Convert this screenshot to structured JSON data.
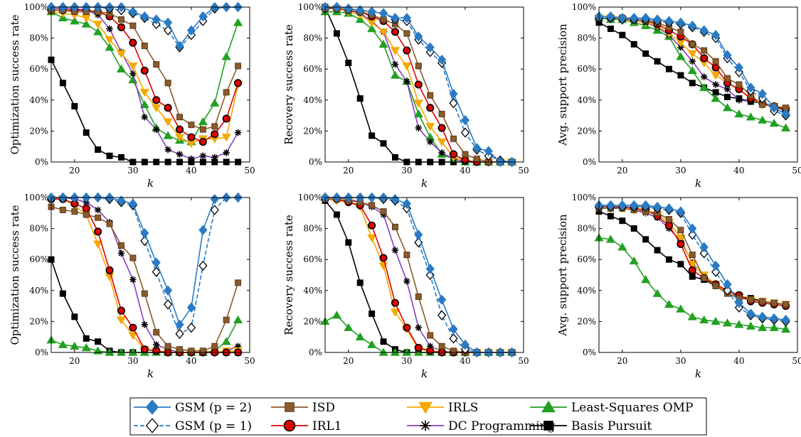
{
  "series": [
    {
      "key": "gsm2",
      "name": "GSM (p = 2)",
      "color": "#2A7BC4",
      "marker": "diamond",
      "filled": true,
      "dash": false
    },
    {
      "key": "gsm1",
      "name": "GSM (p = 1)",
      "color": "#2A7BC4",
      "marker": "diamond",
      "filled": false,
      "dash": true
    },
    {
      "key": "isd",
      "name": "ISD",
      "color": "#8B5A2B",
      "marker": "square",
      "filled": true,
      "dash": false
    },
    {
      "key": "irl1",
      "name": "IRL1",
      "color": "#E00000",
      "marker": "circle",
      "filled": true,
      "dash": false,
      "markerFill": "#E00000",
      "markerStroke": "#000000"
    },
    {
      "key": "irls",
      "name": "IRLS",
      "color": "#F5A800",
      "marker": "triangle-down",
      "filled": true,
      "dash": false
    },
    {
      "key": "dc",
      "name": "DC Programming",
      "color": "#8A3FC0",
      "marker": "asterisk",
      "filled": false,
      "dash": false,
      "markerColor": "#000000"
    },
    {
      "key": "lsomp",
      "name": "Least-Squares OMP",
      "color": "#22A022",
      "marker": "triangle-up",
      "filled": true,
      "dash": false
    },
    {
      "key": "bp",
      "name": "Basis Pursuit",
      "color": "#000000",
      "marker": "square",
      "filled": true,
      "dash": false
    }
  ],
  "legend": {
    "rows": [
      [
        "gsm2",
        "isd",
        "irls",
        "lsomp"
      ],
      [
        "gsm1",
        "irl1",
        "dc",
        "bp"
      ]
    ]
  },
  "chart_data": [
    {
      "type": "line",
      "xlabel": "k",
      "ylabel": "Optimization success rate",
      "ylim": [
        0,
        100
      ],
      "xlim": [
        16,
        50
      ],
      "xticks": [
        20,
        30,
        40,
        50
      ],
      "yticks": [
        "0%",
        "20%",
        "40%",
        "60%",
        "80%",
        "100%"
      ],
      "x": [
        16,
        18,
        20,
        22,
        24,
        26,
        28,
        30,
        32,
        34,
        36,
        38,
        40,
        42,
        44,
        46,
        48
      ],
      "series": {
        "gsm2": [
          100,
          100,
          100,
          100,
          100,
          100,
          100,
          97,
          94,
          92,
          90,
          75,
          85,
          94,
          100,
          100,
          100
        ],
        "gsm1": [
          100,
          100,
          100,
          100,
          100,
          99,
          98,
          96,
          93,
          89,
          85,
          74,
          82,
          91,
          99,
          100,
          100
        ],
        "isd": [
          98,
          98,
          97,
          97,
          97,
          96,
          92,
          88,
          75,
          63,
          51,
          29,
          24,
          21,
          23,
          45,
          62
        ],
        "irl1": [
          98,
          98,
          98,
          98,
          97,
          94,
          87,
          77,
          59,
          40,
          35,
          21,
          16,
          13,
          18,
          28,
          51
        ],
        "irls": [
          97,
          96,
          95,
          93,
          89,
          79,
          70,
          62,
          45,
          35,
          26,
          16,
          12,
          15,
          15,
          16,
          50
        ],
        "dc": [
          99,
          99,
          99,
          98,
          95,
          86,
          71,
          57,
          29,
          21,
          8,
          5,
          2,
          4,
          3,
          6,
          19
        ],
        "lsomp": [
          97,
          93,
          91,
          89,
          84,
          74,
          60,
          53,
          37,
          22,
          17,
          14,
          13,
          26,
          38,
          68,
          90
        ],
        "bp": [
          66,
          51,
          36,
          19,
          8,
          4,
          3,
          0,
          0,
          0,
          0,
          0,
          0,
          0,
          0,
          0,
          0
        ]
      }
    },
    {
      "type": "line",
      "xlabel": "k",
      "ylabel": "Recovery success rate",
      "ylim": [
        0,
        100
      ],
      "xlim": [
        16,
        50
      ],
      "xticks": [
        20,
        30,
        40,
        50
      ],
      "yticks": [
        "0%",
        "20%",
        "40%",
        "60%",
        "80%",
        "100%"
      ],
      "x": [
        16,
        18,
        20,
        22,
        24,
        26,
        28,
        30,
        32,
        34,
        36,
        38,
        40,
        42,
        44,
        46,
        48
      ],
      "series": {
        "gsm2": [
          100,
          100,
          99,
          98,
          97,
          96,
          93,
          93,
          81,
          74,
          66,
          44,
          27,
          9,
          7,
          0,
          0
        ],
        "gsm1": [
          100,
          100,
          99,
          98,
          97,
          96,
          92,
          91,
          79,
          71,
          64,
          38,
          19,
          8,
          4,
          1,
          0
        ],
        "isd": [
          99,
          99,
          98,
          97,
          95,
          92,
          89,
          83,
          62,
          43,
          31,
          15,
          5,
          2,
          0,
          0,
          0
        ],
        "irl1": [
          99,
          99,
          98,
          97,
          94,
          91,
          84,
          72,
          50,
          35,
          22,
          5,
          1,
          0,
          0,
          0,
          0
        ],
        "irls": [
          99,
          99,
          97,
          95,
          90,
          84,
          72,
          62,
          38,
          23,
          13,
          3,
          1,
          0,
          0,
          0,
          0
        ],
        "dc": [
          100,
          99,
          98,
          96,
          91,
          84,
          63,
          52,
          22,
          13,
          6,
          2,
          0,
          0,
          0,
          0,
          0
        ],
        "lsomp": [
          97,
          97,
          96,
          92,
          86,
          76,
          56,
          52,
          31,
          16,
          5,
          2,
          0,
          0,
          0,
          0,
          0
        ],
        "bp": [
          100,
          83,
          64,
          41,
          17,
          12,
          3,
          0,
          0,
          0,
          0,
          0,
          0,
          0,
          0,
          0,
          0
        ]
      }
    },
    {
      "type": "line",
      "xlabel": "k",
      "ylabel": "Avg. support precision",
      "ylim": [
        0,
        100
      ],
      "xlim": [
        16,
        50
      ],
      "xticks": [
        20,
        30,
        40,
        50
      ],
      "yticks": [
        "0%",
        "20%",
        "40%",
        "60%",
        "80%",
        "100%"
      ],
      "x": [
        16,
        18,
        20,
        22,
        24,
        26,
        28,
        30,
        32,
        34,
        36,
        38,
        40,
        42,
        44,
        46,
        48
      ],
      "series": {
        "gsm2": [
          94,
          94,
          93,
          93,
          93,
          92,
          91,
          90,
          88,
          85,
          82,
          69,
          61,
          48,
          44,
          35,
          31
        ],
        "gsm1": [
          93,
          93,
          92,
          92,
          92,
          91,
          90,
          89,
          87,
          84,
          80,
          67,
          58,
          46,
          41,
          33,
          30
        ],
        "isd": [
          93,
          93,
          93,
          92,
          91,
          90,
          87,
          84,
          76,
          72,
          65,
          54,
          50,
          43,
          37,
          36,
          35
        ],
        "irl1": [
          93,
          93,
          93,
          92,
          91,
          89,
          85,
          81,
          76,
          67,
          61,
          51,
          47,
          41,
          38,
          36,
          34
        ],
        "irls": [
          93,
          93,
          92,
          91,
          90,
          88,
          83,
          77,
          70,
          64,
          56,
          51,
          47,
          41,
          37,
          36,
          34
        ],
        "dc": [
          93,
          93,
          92,
          91,
          90,
          87,
          82,
          74,
          65,
          55,
          50,
          47,
          40,
          39,
          39,
          34,
          32
        ],
        "lsomp": [
          93,
          92,
          92,
          90,
          88,
          85,
          81,
          68,
          59,
          48,
          41,
          35,
          31,
          29,
          27,
          25,
          22
        ],
        "bp": [
          90,
          86,
          82,
          76,
          70,
          65,
          60,
          56,
          51,
          48,
          45,
          42,
          41,
          39,
          38,
          35,
          34
        ]
      }
    },
    {
      "type": "line",
      "xlabel": "k",
      "ylabel": "Optimization success rate",
      "ylim": [
        0,
        100
      ],
      "xlim": [
        16,
        50
      ],
      "xticks": [
        20,
        30,
        40,
        50
      ],
      "yticks": [
        "0%",
        "20%",
        "40%",
        "60%",
        "80%",
        "100%"
      ],
      "x": [
        16,
        18,
        20,
        22,
        24,
        26,
        28,
        30,
        32,
        34,
        36,
        38,
        40,
        42,
        44,
        46,
        48
      ],
      "series": {
        "gsm2": [
          100,
          100,
          100,
          100,
          100,
          100,
          98,
          96,
          77,
          58,
          40,
          18,
          29,
          79,
          99,
          100,
          100
        ],
        "gsm1": [
          100,
          100,
          100,
          100,
          100,
          99,
          97,
          95,
          72,
          52,
          31,
          12,
          16,
          56,
          92,
          100,
          100
        ],
        "isd": [
          94,
          92,
          91,
          89,
          87,
          83,
          69,
          61,
          38,
          13,
          4,
          2,
          1,
          1,
          4,
          21,
          45
        ],
        "irl1": [
          99,
          99,
          96,
          93,
          78,
          53,
          27,
          16,
          2,
          1,
          0,
          0,
          0,
          0,
          0,
          0,
          0
        ],
        "irls": [
          99,
          99,
          95,
          89,
          70,
          49,
          21,
          11,
          2,
          1,
          0,
          0,
          0,
          0,
          0,
          1,
          1
        ],
        "dc": [
          100,
          100,
          99,
          97,
          92,
          84,
          64,
          47,
          18,
          5,
          2,
          0,
          0,
          0,
          0,
          1,
          4
        ],
        "lsomp": [
          8,
          5,
          4,
          3,
          1,
          0,
          0,
          0,
          0,
          0,
          0,
          0,
          0,
          0,
          1,
          7,
          21
        ],
        "bp": [
          60,
          38,
          23,
          9,
          7,
          1,
          0,
          0,
          0,
          0,
          0,
          0,
          0,
          0,
          0,
          0,
          0
        ]
      }
    },
    {
      "type": "line",
      "xlabel": "k",
      "ylabel": "Recovery success rate",
      "ylim": [
        0,
        100
      ],
      "xlim": [
        16,
        50
      ],
      "xticks": [
        20,
        30,
        40,
        50
      ],
      "yticks": [
        "0%",
        "20%",
        "40%",
        "60%",
        "80%",
        "100%"
      ],
      "x": [
        16,
        18,
        20,
        22,
        24,
        26,
        28,
        30,
        32,
        34,
        36,
        38,
        40,
        42,
        44,
        46,
        48
      ],
      "series": {
        "gsm2": [
          100,
          100,
          100,
          100,
          100,
          100,
          99,
          96,
          76,
          54,
          34,
          15,
          5,
          0,
          0,
          0,
          0
        ],
        "gsm1": [
          100,
          100,
          100,
          100,
          100,
          99,
          98,
          93,
          71,
          50,
          24,
          9,
          2,
          0,
          0,
          0,
          0
        ],
        "isd": [
          99,
          99,
          98,
          97,
          95,
          91,
          81,
          63,
          36,
          11,
          4,
          1,
          0,
          0,
          0,
          0,
          0
        ],
        "irl1": [
          99,
          99,
          97,
          95,
          82,
          61,
          32,
          16,
          3,
          1,
          0,
          0,
          0,
          0,
          0,
          0,
          0
        ],
        "irls": [
          99,
          98,
          97,
          94,
          74,
          56,
          26,
          15,
          2,
          1,
          0,
          0,
          0,
          0,
          0,
          0,
          0
        ],
        "dc": [
          100,
          100,
          99,
          97,
          94,
          89,
          66,
          46,
          16,
          4,
          1,
          0,
          0,
          0,
          0,
          0,
          0
        ],
        "lsomp": [
          20,
          24,
          16,
          10,
          5,
          0,
          0,
          0,
          0,
          0,
          0,
          0,
          0,
          0,
          0,
          0,
          0
        ],
        "bp": [
          98,
          89,
          71,
          45,
          25,
          7,
          2,
          0,
          0,
          0,
          0,
          0,
          0,
          0,
          0,
          0,
          0
        ]
      }
    },
    {
      "type": "line",
      "xlabel": "k",
      "ylabel": "Avg. support precision",
      "ylim": [
        0,
        100
      ],
      "xlim": [
        16,
        50
      ],
      "xticks": [
        20,
        30,
        40,
        50
      ],
      "yticks": [
        "0%",
        "20%",
        "40%",
        "60%",
        "80%",
        "100%"
      ],
      "x": [
        16,
        18,
        20,
        22,
        24,
        26,
        28,
        30,
        32,
        34,
        36,
        38,
        40,
        42,
        44,
        46,
        48
      ],
      "series": {
        "gsm2": [
          95,
          95,
          95,
          95,
          95,
          94,
          93,
          91,
          80,
          68,
          56,
          44,
          32,
          25,
          23,
          22,
          21
        ],
        "gsm1": [
          94,
          94,
          94,
          94,
          94,
          93,
          92,
          90,
          76,
          64,
          52,
          40,
          29,
          24,
          22,
          21,
          20
        ],
        "isd": [
          93,
          93,
          93,
          92,
          91,
          90,
          86,
          79,
          63,
          48,
          43,
          38,
          35,
          34,
          33,
          32,
          31
        ],
        "irl1": [
          94,
          94,
          94,
          93,
          92,
          88,
          82,
          70,
          53,
          48,
          44,
          40,
          37,
          33,
          32,
          31,
          30
        ],
        "irls": [
          93,
          93,
          93,
          92,
          91,
          89,
          84,
          74,
          57,
          50,
          44,
          39,
          36,
          34,
          33,
          32,
          31
        ],
        "dc": [
          94,
          94,
          93,
          92,
          90,
          87,
          80,
          72,
          58,
          49,
          43,
          40,
          36,
          34,
          33,
          32,
          31
        ],
        "lsomp": [
          74,
          73,
          68,
          59,
          47,
          38,
          31,
          28,
          23,
          21,
          20,
          19,
          18,
          17,
          16,
          16,
          15
        ],
        "bp": [
          91,
          88,
          85,
          80,
          73,
          66,
          60,
          57,
          49,
          47,
          43,
          39,
          36,
          35,
          33,
          32,
          31
        ]
      }
    }
  ]
}
